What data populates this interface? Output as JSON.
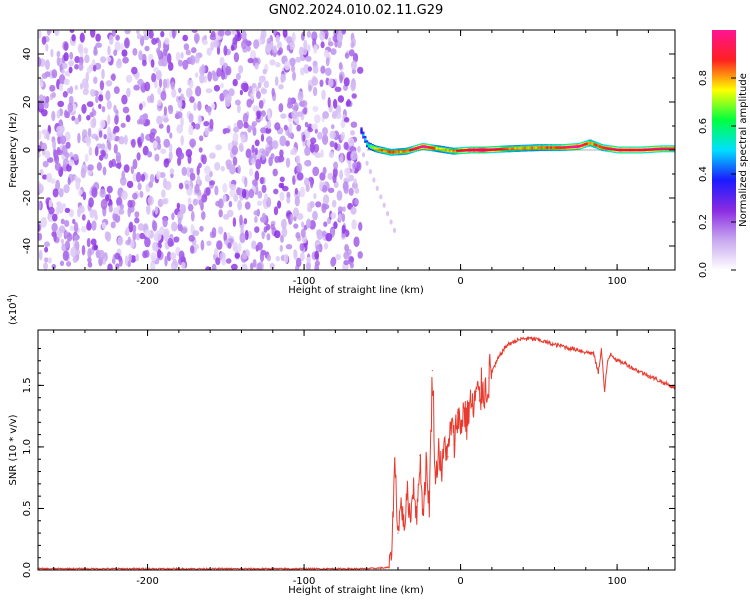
{
  "figure": {
    "title": "GN02.2024.010.02.11.G29",
    "colors": {
      "line": "#e83a2e",
      "axis": "#000000",
      "background": "#ffffff"
    }
  },
  "chart_data": [
    {
      "type": "heatmap",
      "xlabel": "Height of straight line (km)",
      "ylabel": "Frequency (Hz)",
      "xlim": [
        -270,
        137
      ],
      "ylim": [
        -50,
        50
      ],
      "x_ticks": [
        -200,
        -100,
        0,
        100
      ],
      "x_tick_labels": [
        "-200",
        "-100",
        "0",
        "100"
      ],
      "y_ticks": [
        -40,
        -20,
        0,
        20,
        40
      ],
      "y_tick_labels": [
        "-40",
        "-20",
        "0",
        "20",
        "40"
      ],
      "grid": false,
      "noise_region": {
        "x_range": [
          -270,
          -64
        ],
        "freq_range": [
          -50,
          50
        ],
        "level": "low"
      },
      "signal_track": {
        "x_start": -64,
        "x_end": 137,
        "frequency_hz": 0,
        "ridge": [
          {
            "x": -64,
            "f": 8,
            "amp": 0.2
          },
          {
            "x": -60,
            "f": 2,
            "amp": 0.35
          },
          {
            "x": -55,
            "f": 0.5,
            "amp": 0.6
          },
          {
            "x": -45,
            "f": -1,
            "amp": 0.65
          },
          {
            "x": -35,
            "f": -0.5,
            "amp": 0.6
          },
          {
            "x": -25,
            "f": 1.5,
            "amp": 0.85
          },
          {
            "x": -15,
            "f": 0.5,
            "amp": 0.55
          },
          {
            "x": -5,
            "f": -0.5,
            "amp": 0.6
          },
          {
            "x": 5,
            "f": 0,
            "amp": 0.85
          },
          {
            "x": 15,
            "f": 0,
            "amp": 0.9
          },
          {
            "x": 30,
            "f": 0.5,
            "amp": 0.6
          },
          {
            "x": 50,
            "f": 1,
            "amp": 0.62
          },
          {
            "x": 65,
            "f": 1,
            "amp": 0.7
          },
          {
            "x": 75,
            "f": 1.5,
            "amp": 0.85
          },
          {
            "x": 82,
            "f": 3,
            "amp": 0.6
          },
          {
            "x": 90,
            "f": 1,
            "amp": 0.7
          },
          {
            "x": 100,
            "f": 0,
            "amp": 0.8
          },
          {
            "x": 115,
            "f": 0,
            "amp": 0.8
          },
          {
            "x": 128,
            "f": 0.5,
            "amp": 0.75
          },
          {
            "x": 137,
            "f": 0.5,
            "amp": 0.7
          }
        ]
      },
      "colorbar": {
        "label": "Normalized spectral amplitude",
        "range": [
          0,
          1
        ],
        "ticks": [
          0,
          0.2,
          0.4,
          0.6,
          0.8
        ],
        "tick_labels": [
          "0.0",
          "0.2",
          "0.4",
          "0.6",
          "0.8"
        ],
        "colormap": [
          "#ffffff",
          "#c8a8f0",
          "#8a2be2",
          "#1a1aff",
          "#00e0ff",
          "#00ff40",
          "#ffff00",
          "#ff2020",
          "#ff1493"
        ]
      }
    },
    {
      "type": "line",
      "xlabel": "Height of straight line (km)",
      "ylabel": "SNR (10 * v/v)",
      "y_multiplier": "(x10",
      "y_multiplier_exp": "4",
      "y_multiplier_close": ")",
      "xlim": [
        -270,
        137
      ],
      "ylim": [
        0,
        1.95
      ],
      "x_ticks": [
        -200,
        -100,
        0,
        100
      ],
      "x_tick_labels": [
        "-200",
        "-100",
        "0",
        "100"
      ],
      "y_ticks": [
        0,
        0.5,
        1.0,
        1.5
      ],
      "y_tick_labels": [
        "0.0",
        "0.5",
        "1.0",
        "1.5"
      ],
      "grid": false,
      "series": [
        {
          "color": "#e83a2e",
          "x": [
            -270,
            -250,
            -200,
            -150,
            -100,
            -60,
            -46,
            -44,
            -42,
            -40,
            -38,
            -36,
            -34,
            -32,
            -30,
            -28,
            -26,
            -24,
            -22,
            -20,
            -18,
            -16,
            -14,
            -12,
            -10,
            -8,
            -6,
            -4,
            -2,
            0,
            2,
            4,
            6,
            8,
            10,
            12,
            14,
            16,
            18,
            20,
            22,
            24,
            26,
            28,
            30,
            35,
            40,
            45,
            50,
            55,
            60,
            65,
            70,
            75,
            80,
            85,
            88,
            90,
            92,
            94,
            96,
            100,
            105,
            110,
            115,
            120,
            125,
            130,
            137
          ],
          "y": [
            0.01,
            0.01,
            0.01,
            0.01,
            0.01,
            0.01,
            0.02,
            0.15,
            0.9,
            0.3,
            0.55,
            0.35,
            0.62,
            0.42,
            0.72,
            0.4,
            0.93,
            0.45,
            0.85,
            0.52,
            1.62,
            0.7,
            1.0,
            0.78,
            1.05,
            0.92,
            1.2,
            1.02,
            1.28,
            1.15,
            1.32,
            1.2,
            1.38,
            1.28,
            1.45,
            1.38,
            1.5,
            1.45,
            1.56,
            1.62,
            1.66,
            1.72,
            1.76,
            1.8,
            1.83,
            1.86,
            1.88,
            1.88,
            1.87,
            1.85,
            1.83,
            1.82,
            1.8,
            1.79,
            1.77,
            1.76,
            1.6,
            1.8,
            1.45,
            1.7,
            1.76,
            1.7,
            1.68,
            1.64,
            1.61,
            1.58,
            1.55,
            1.52,
            1.48
          ]
        }
      ]
    }
  ]
}
